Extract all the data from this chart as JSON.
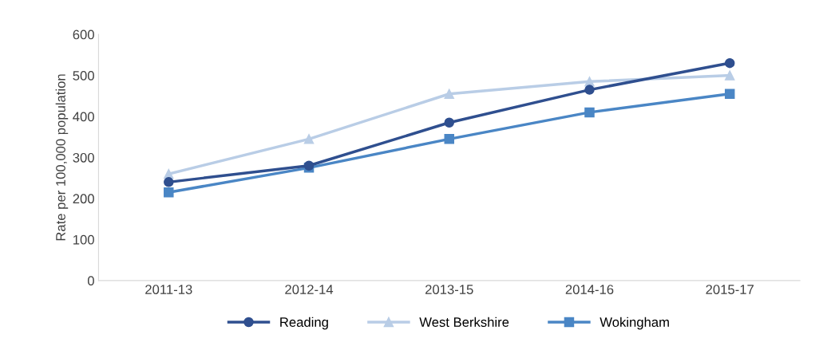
{
  "chart_data": {
    "type": "line",
    "ylabel": "Rate per 100,000 population",
    "categories": [
      "2011-13",
      "2012-14",
      "2013-15",
      "2014-16",
      "2015-17"
    ],
    "series": [
      {
        "name": "Reading",
        "color": "#2f4f8f",
        "marker": "circle",
        "values": [
          240,
          280,
          385,
          465,
          530
        ]
      },
      {
        "name": "West Berkshire",
        "color": "#b9cde6",
        "marker": "triangle",
        "values": [
          260,
          345,
          455,
          485,
          500
        ]
      },
      {
        "name": "Wokingham",
        "color": "#4a86c5",
        "marker": "square",
        "values": [
          215,
          275,
          345,
          410,
          455
        ]
      }
    ],
    "ylim": [
      0,
      600
    ],
    "yticks": [
      0,
      100,
      200,
      300,
      400,
      500,
      600
    ],
    "grid": false,
    "legend": "bottom"
  }
}
